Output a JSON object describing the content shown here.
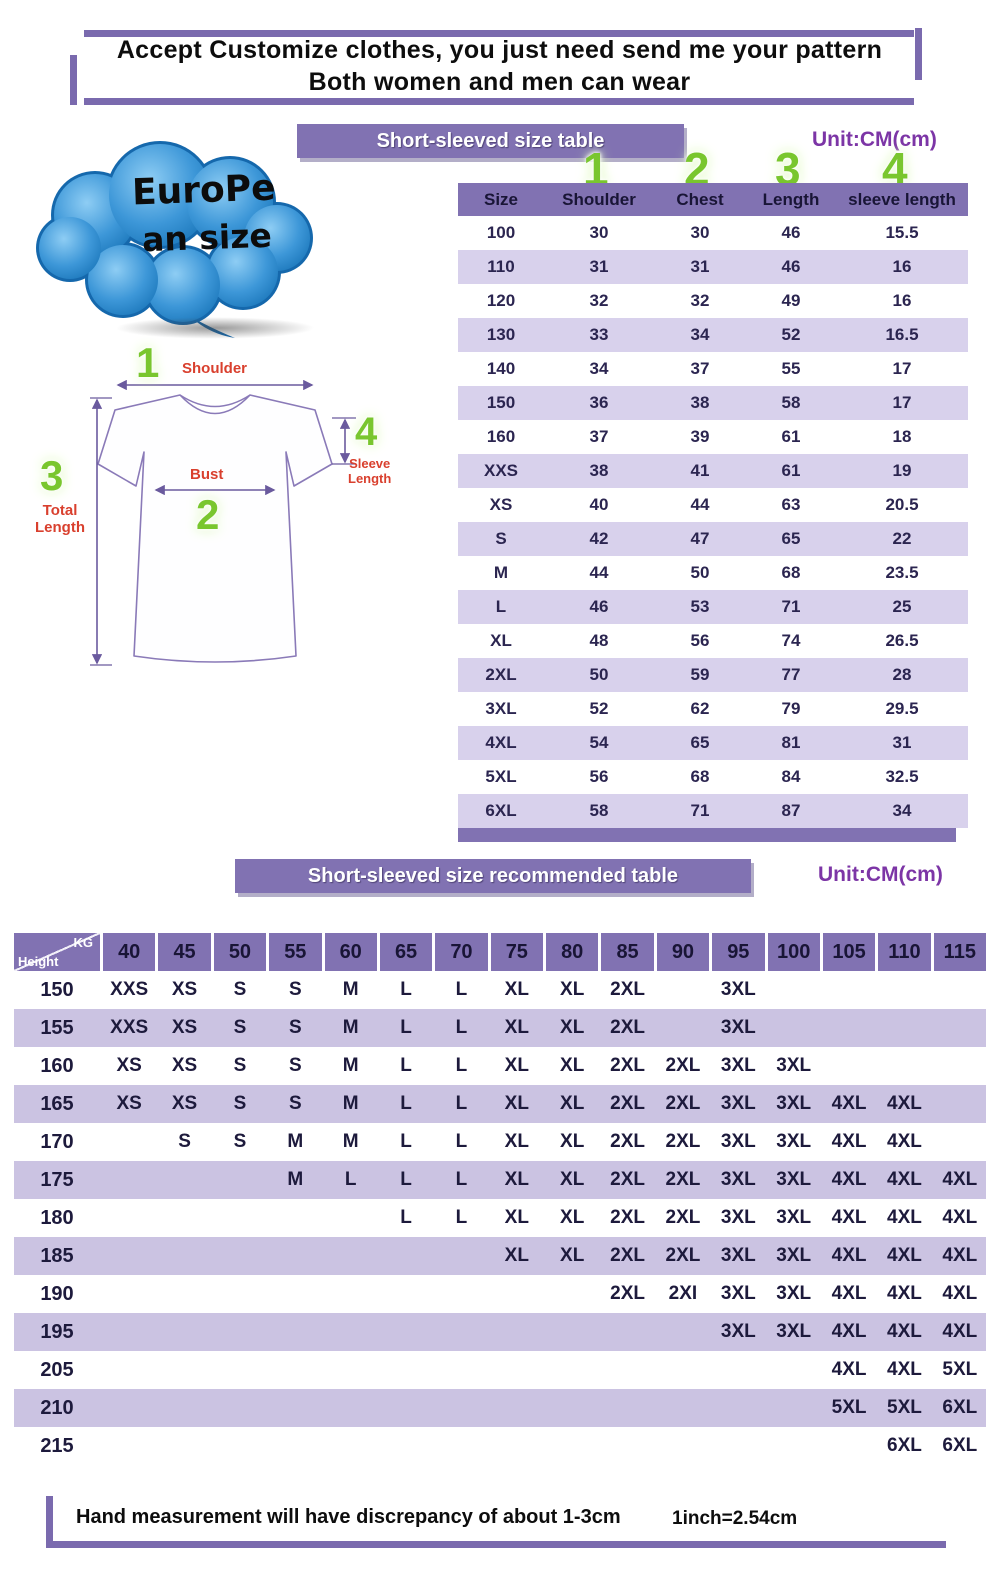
{
  "colors": {
    "purple": "#8172b2",
    "lavender_row": "#d8d1ec",
    "band_row": "#cbc3e2",
    "glow_green": "#79c62e",
    "label_red": "#d9402e",
    "unit_purple": "#7c35a6",
    "cloud_blue": "#1d7fc4"
  },
  "header": {
    "line1": "Accept Customize clothes, you just need send me your pattern",
    "line2": "Both women and men can wear"
  },
  "banner1": {
    "title": "Short-sleeved size  table",
    "unit": "Unit:CM(cm)"
  },
  "banner2": {
    "title": "Short-sleeved size recommended table",
    "unit": "Unit:CM(cm)"
  },
  "cloud": {
    "line1": "EuroPe",
    "line2": "an size"
  },
  "diagram": {
    "marker_shoulder": "1",
    "marker_bust": "2",
    "marker_length": "3",
    "marker_sleeve": "4",
    "shoulder_label": "Shoulder",
    "bust_label": "Bust",
    "total_label_line1": "Total",
    "total_label_line2": "Length",
    "sleeve_label_line1": "Sleeve",
    "sleeve_label_line2": "Length"
  },
  "size_table": {
    "col_markers": [
      "1",
      "2",
      "3",
      "4"
    ],
    "headers": [
      "Size",
      "Shoulder",
      "Chest",
      "Length",
      "sleeve length"
    ],
    "rows": [
      [
        "100",
        "30",
        "30",
        "46",
        "15.5"
      ],
      [
        "110",
        "31",
        "31",
        "46",
        "16"
      ],
      [
        "120",
        "32",
        "32",
        "49",
        "16"
      ],
      [
        "130",
        "33",
        "34",
        "52",
        "16.5"
      ],
      [
        "140",
        "34",
        "37",
        "55",
        "17"
      ],
      [
        "150",
        "36",
        "38",
        "58",
        "17"
      ],
      [
        "160",
        "37",
        "39",
        "61",
        "18"
      ],
      [
        "XXS",
        "38",
        "41",
        "61",
        "19"
      ],
      [
        "XS",
        "40",
        "44",
        "63",
        "20.5"
      ],
      [
        "S",
        "42",
        "47",
        "65",
        "22"
      ],
      [
        "M",
        "44",
        "50",
        "68",
        "23.5"
      ],
      [
        "L",
        "46",
        "53",
        "71",
        "25"
      ],
      [
        "XL",
        "48",
        "56",
        "74",
        "26.5"
      ],
      [
        "2XL",
        "50",
        "59",
        "77",
        "28"
      ],
      [
        "3XL",
        "52",
        "62",
        "79",
        "29.5"
      ],
      [
        "4XL",
        "54",
        "65",
        "81",
        "31"
      ],
      [
        "5XL",
        "56",
        "68",
        "84",
        "32.5"
      ],
      [
        "6XL",
        "58",
        "71",
        "87",
        "34"
      ]
    ]
  },
  "reco_table": {
    "corner_top": "KG",
    "corner_bottom": "Height",
    "weights": [
      "40",
      "45",
      "50",
      "55",
      "60",
      "65",
      "70",
      "75",
      "80",
      "85",
      "90",
      "95",
      "100",
      "105",
      "110",
      "115"
    ],
    "rows": [
      {
        "height": "150",
        "cells": [
          "XXS",
          "XS",
          "S",
          "S",
          "M",
          "L",
          "L",
          "XL",
          "XL",
          "2XL",
          "",
          "3XL",
          "",
          "",
          "",
          ""
        ]
      },
      {
        "height": "155",
        "cells": [
          "XXS",
          "XS",
          "S",
          "S",
          "M",
          "L",
          "L",
          "XL",
          "XL",
          "2XL",
          "",
          "3XL",
          "",
          "",
          "",
          ""
        ]
      },
      {
        "height": "160",
        "cells": [
          "XS",
          "XS",
          "S",
          "S",
          "M",
          "L",
          "L",
          "XL",
          "XL",
          "2XL",
          "2XL",
          "3XL",
          "3XL",
          "",
          "",
          ""
        ]
      },
      {
        "height": "165",
        "cells": [
          "XS",
          "XS",
          "S",
          "S",
          "M",
          "L",
          "L",
          "XL",
          "XL",
          "2XL",
          "2XL",
          "3XL",
          "3XL",
          "4XL",
          "4XL",
          ""
        ]
      },
      {
        "height": "170",
        "cells": [
          "",
          "S",
          "S",
          "M",
          "M",
          "L",
          "L",
          "XL",
          "XL",
          "2XL",
          "2XL",
          "3XL",
          "3XL",
          "4XL",
          "4XL",
          ""
        ]
      },
      {
        "height": "175",
        "cells": [
          "",
          "",
          "",
          "M",
          "L",
          "L",
          "L",
          "XL",
          "XL",
          "2XL",
          "2XL",
          "3XL",
          "3XL",
          "4XL",
          "4XL",
          "4XL"
        ]
      },
      {
        "height": "180",
        "cells": [
          "",
          "",
          "",
          "",
          "",
          "L",
          "L",
          "XL",
          "XL",
          "2XL",
          "2XL",
          "3XL",
          "3XL",
          "4XL",
          "4XL",
          "4XL"
        ]
      },
      {
        "height": "185",
        "cells": [
          "",
          "",
          "",
          "",
          "",
          "",
          "",
          "XL",
          "XL",
          "2XL",
          "2XL",
          "3XL",
          "3XL",
          "4XL",
          "4XL",
          "4XL"
        ]
      },
      {
        "height": "190",
        "cells": [
          "",
          "",
          "",
          "",
          "",
          "",
          "",
          "",
          "",
          "2XL",
          "2XI",
          "3XL",
          "3XL",
          "4XL",
          "4XL",
          "4XL"
        ]
      },
      {
        "height": "195",
        "cells": [
          "",
          "",
          "",
          "",
          "",
          "",
          "",
          "",
          "",
          "",
          "",
          "3XL",
          "3XL",
          "4XL",
          "4XL",
          "4XL"
        ]
      },
      {
        "height": "205",
        "cells": [
          "",
          "",
          "",
          "",
          "",
          "",
          "",
          "",
          "",
          "",
          "",
          "",
          "",
          "4XL",
          "4XL",
          "5XL"
        ]
      },
      {
        "height": "210",
        "cells": [
          "",
          "",
          "",
          "",
          "",
          "",
          "",
          "",
          "",
          "",
          "",
          "",
          "",
          "5XL",
          "5XL",
          "6XL"
        ]
      },
      {
        "height": "215",
        "cells": [
          "",
          "",
          "",
          "",
          "",
          "",
          "",
          "",
          "",
          "",
          "",
          "",
          "",
          "",
          "6XL",
          "6XL"
        ]
      }
    ]
  },
  "footer": {
    "note": "Hand measurement will have discrepancy of about  1-3cm",
    "conversion": "1inch=2.54cm"
  }
}
